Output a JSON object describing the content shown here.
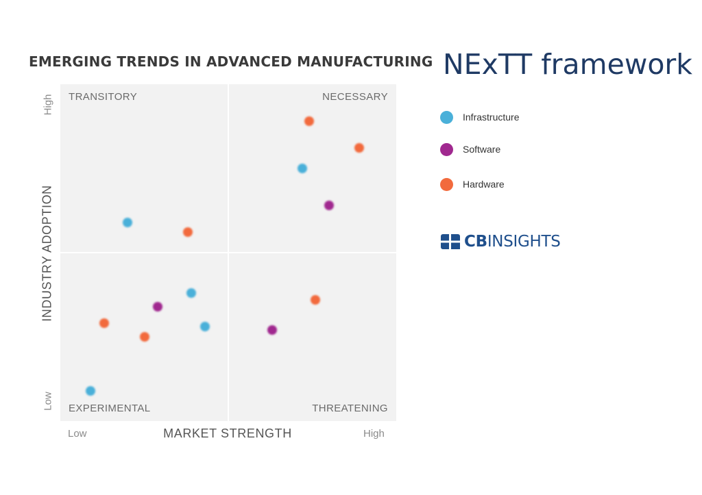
{
  "header": {
    "chart_title": "EMERGING TRENDS IN ADVANCED MANUFACTURING",
    "framework_title": "NExTT framework"
  },
  "legend": [
    {
      "label": "Infrastructure",
      "color": "#4ab0d9"
    },
    {
      "label": "Software",
      "color": "#a0288f"
    },
    {
      "label": "Hardware",
      "color": "#f26a3d"
    }
  ],
  "logo": {
    "bold": "CB",
    "rest": "INSIGHTS",
    "icon": "cb-insights-logo-icon"
  },
  "chart_data": {
    "type": "scatter",
    "title": "EMERGING TRENDS IN ADVANCED MANUFACTURING",
    "xlabel": "MARKET STRENGTH",
    "ylabel": "INDUSTRY ADOPTION",
    "x_ticks": [
      "Low",
      "High"
    ],
    "y_ticks": [
      "Low",
      "High"
    ],
    "xlim": [
      0,
      1
    ],
    "ylim": [
      0,
      1
    ],
    "grid": false,
    "legend_position": "right",
    "quadrants": {
      "top_left": "TRANSITORY",
      "top_right": "NECESSARY",
      "bottom_left": "EXPERIMENTAL",
      "bottom_right": "THREATENING"
    },
    "series": [
      {
        "name": "Infrastructure",
        "color": "#4ab0d9",
        "points": [
          {
            "x": 0.72,
            "y": 0.75
          },
          {
            "x": 0.2,
            "y": 0.59
          },
          {
            "x": 0.39,
            "y": 0.38
          },
          {
            "x": 0.43,
            "y": 0.28
          },
          {
            "x": 0.09,
            "y": 0.09
          }
        ]
      },
      {
        "name": "Software",
        "color": "#a0288f",
        "points": [
          {
            "x": 0.8,
            "y": 0.64
          },
          {
            "x": 0.29,
            "y": 0.34
          },
          {
            "x": 0.63,
            "y": 0.27
          }
        ]
      },
      {
        "name": "Hardware",
        "color": "#f26a3d",
        "points": [
          {
            "x": 0.74,
            "y": 0.89
          },
          {
            "x": 0.89,
            "y": 0.81
          },
          {
            "x": 0.38,
            "y": 0.56
          },
          {
            "x": 0.76,
            "y": 0.36
          },
          {
            "x": 0.13,
            "y": 0.29
          },
          {
            "x": 0.25,
            "y": 0.25
          }
        ]
      }
    ]
  }
}
